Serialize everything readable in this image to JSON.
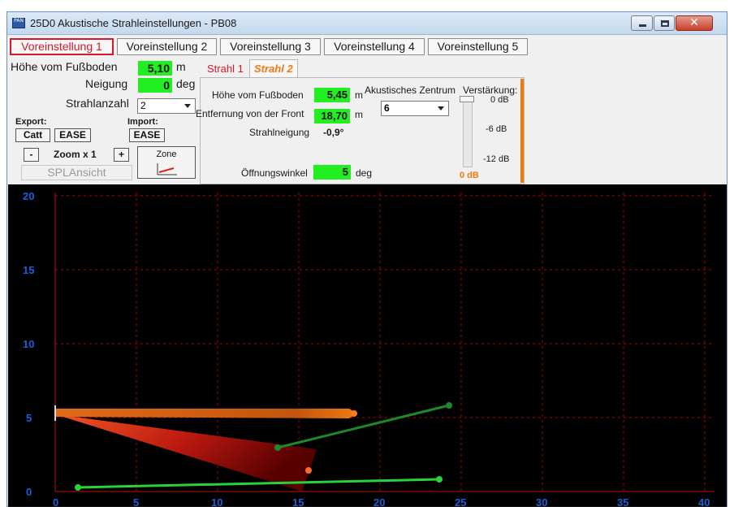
{
  "window": {
    "icon_text": "PAN",
    "title": "25D0 Akustische Strahleinstellungen -  PB08"
  },
  "presets": [
    "Voreinstellung 1",
    "Voreinstellung 2",
    "Voreinstellung 3",
    "Voreinstellung 4",
    "Voreinstellung 5"
  ],
  "left": {
    "height_label": "Höhe vom Fußboden",
    "height_value": "5,10",
    "height_unit": "m",
    "tilt_label": "Neigung",
    "tilt_value": "0",
    "tilt_unit": "deg",
    "beams_label": "Strahlanzahl",
    "beams_value": "2",
    "export_label": "Export:",
    "export_catt": "Catt",
    "export_ease": "EASE",
    "import_label": "Import:",
    "import_ease": "EASE",
    "zoom_minus": "-",
    "zoom_label": "Zoom x 1",
    "zoom_plus": "+",
    "zone_label": "Zone",
    "spl_label": "SPLAnsicht"
  },
  "tabs": [
    "Strahl 1",
    "Strahl 2"
  ],
  "beam": {
    "height_label": "Höhe vom Fußboden",
    "height_value": "5,45",
    "height_unit": "m",
    "dist_label": "Entfernung von der Front",
    "dist_value": "18,70",
    "dist_unit": "m",
    "tilt_label": "Strahlneigung",
    "tilt_value": "-0,9°",
    "angle_label": "Öffnungswinkel",
    "angle_value": "5",
    "angle_unit": "deg",
    "center_label": "Akustisches Zentrum",
    "center_value": "6",
    "gain_label": "Verstärkung:",
    "gain_0": "0 dB",
    "gain_6": "-6 dB",
    "gain_12": "-12 dB",
    "gain_value": "0 dB"
  },
  "plot": {
    "y_ticks": [
      "20",
      "15",
      "10",
      "5",
      "0"
    ],
    "x_ticks": [
      "0",
      "5",
      "10",
      "15",
      "20",
      "25",
      "30",
      "35",
      "40"
    ]
  },
  "colors": {
    "accent_red": "#d8182a",
    "value_green": "#22ee22",
    "gain_orange": "#f07a10",
    "axis_blue": "#1c5fd8"
  }
}
